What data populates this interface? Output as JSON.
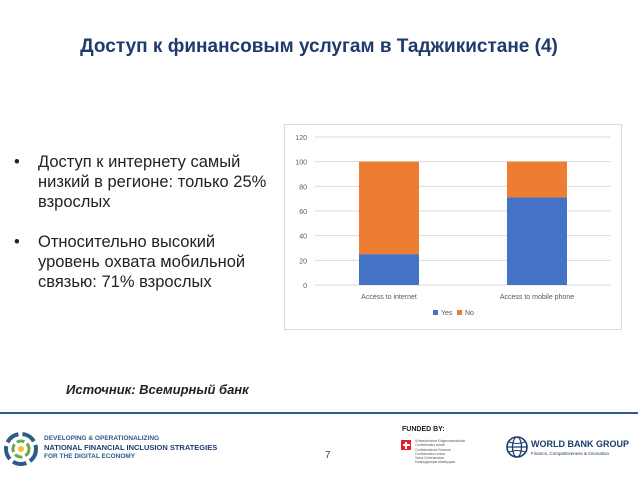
{
  "title": "Доступ к финансовым услугам в Таджикистане (4)",
  "bullets": [
    {
      "mark": "•",
      "text": "Доступ к интернету самый низкий в регионе: только 25% взрослых"
    },
    {
      "mark": "•",
      "text": "Относительно высокий уровень охвата мобильной связью: 71% взрослых"
    }
  ],
  "source": "Источник: Всемирный банк",
  "colors": {
    "yes": "#4472c4",
    "no": "#ed7d31",
    "title": "#1f3a6e",
    "grid": "#d9d9d9"
  },
  "chart_data": {
    "type": "bar",
    "stacked": true,
    "categories": [
      "Access to internet",
      "Access to mobile phone"
    ],
    "series": [
      {
        "name": "Yes",
        "values": [
          25,
          71
        ]
      },
      {
        "name": "No",
        "values": [
          75,
          29
        ]
      }
    ],
    "ylim": [
      0,
      120
    ],
    "yticks": [
      0,
      20,
      40,
      60,
      80,
      100,
      120
    ],
    "legend_position": "bottom",
    "grid": true
  },
  "footer": {
    "left_line1": "DEVELOPING & OPERATIONALIZING",
    "left_line2": "NATIONAL FINANCIAL INCLUSION STRATEGIES",
    "left_line3": "FOR THE DIGITAL ECONOMY",
    "page_number": "7",
    "funded_by": "FUNDED BY:",
    "swiss_lines": [
      "Schweizerische Eidgenossenschaft",
      "Confédération suisse",
      "Confederazione Svizzera",
      "Confederaziun svizra",
      "Swiss Confederation",
      "Конфедерация Швейцария"
    ],
    "wb_name": "WORLD BANK GROUP",
    "wb_sub": "Finance, Competitiveness & Innovation"
  }
}
